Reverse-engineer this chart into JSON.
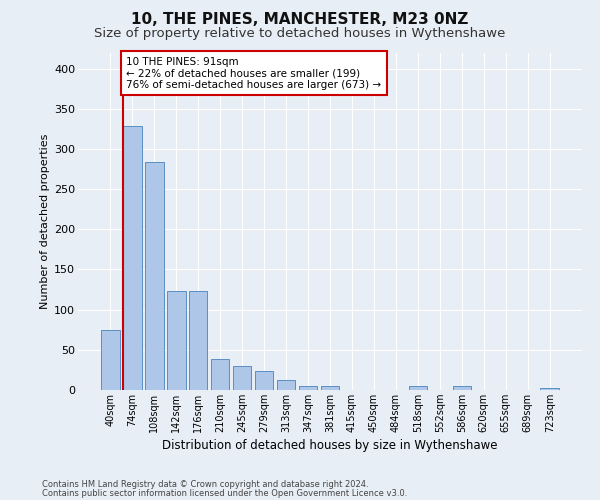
{
  "title": "10, THE PINES, MANCHESTER, M23 0NZ",
  "subtitle": "Size of property relative to detached houses in Wythenshawe",
  "xlabel": "Distribution of detached houses by size in Wythenshawe",
  "ylabel": "Number of detached properties",
  "footnote1": "Contains HM Land Registry data © Crown copyright and database right 2024.",
  "footnote2": "Contains public sector information licensed under the Open Government Licence v3.0.",
  "bar_labels": [
    "40sqm",
    "74sqm",
    "108sqm",
    "142sqm",
    "176sqm",
    "210sqm",
    "245sqm",
    "279sqm",
    "313sqm",
    "347sqm",
    "381sqm",
    "415sqm",
    "450sqm",
    "484sqm",
    "518sqm",
    "552sqm",
    "586sqm",
    "620sqm",
    "655sqm",
    "689sqm",
    "723sqm"
  ],
  "bar_values": [
    75,
    328,
    284,
    123,
    123,
    38,
    30,
    24,
    12,
    5,
    5,
    0,
    0,
    0,
    5,
    0,
    5,
    0,
    0,
    0,
    3
  ],
  "bar_color": "#aec6e8",
  "bar_edge_color": "#5a8fc2",
  "subject_line_color": "#cc0000",
  "annotation_text": "10 THE PINES: 91sqm\n← 22% of detached houses are smaller (199)\n76% of semi-detached houses are larger (673) →",
  "annotation_box_color": "#ffffff",
  "annotation_box_edge": "#cc0000",
  "ylim": [
    0,
    420
  ],
  "yticks": [
    0,
    50,
    100,
    150,
    200,
    250,
    300,
    350,
    400
  ],
  "bg_color": "#e8eef5",
  "plot_bg_color": "#e8eef5",
  "grid_color": "#ffffff",
  "title_fontsize": 11,
  "subtitle_fontsize": 9.5,
  "bar_width": 0.85
}
